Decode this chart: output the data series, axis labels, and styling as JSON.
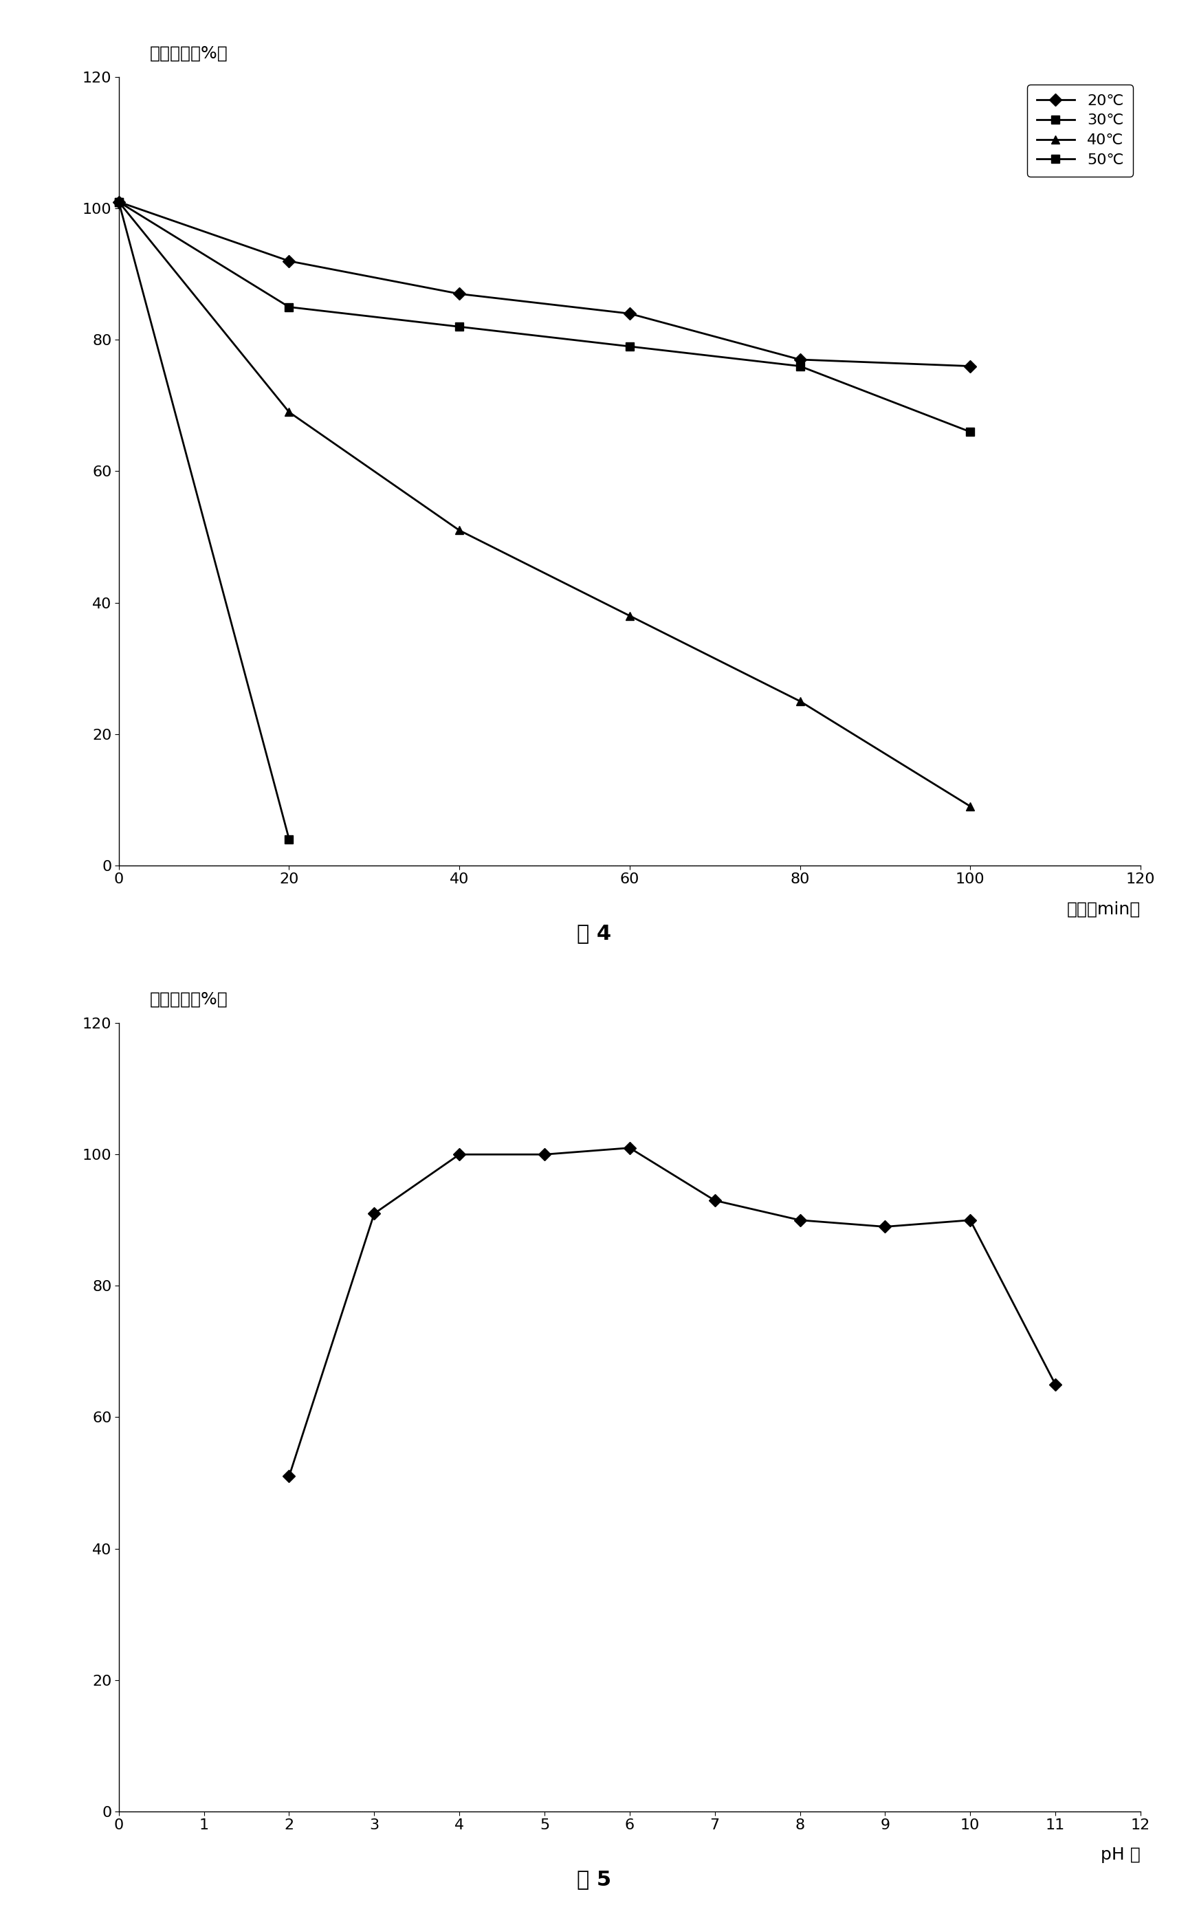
{
  "fig4": {
    "title": "图 4",
    "xlabel": "时间（min）",
    "ylabel": "相对酶活（%）",
    "xlim": [
      0,
      120
    ],
    "ylim": [
      0,
      120
    ],
    "xticks": [
      0,
      20,
      40,
      60,
      80,
      100,
      120
    ],
    "yticks": [
      0,
      20,
      40,
      60,
      80,
      100,
      120
    ],
    "series": [
      {
        "label": "20℃",
        "x": [
          0,
          20,
          40,
          60,
          80,
          100
        ],
        "y": [
          101,
          92,
          87,
          84,
          77,
          76
        ],
        "color": "#000000",
        "marker": "D",
        "markersize": 9,
        "linewidth": 2.0,
        "linestyle": "-"
      },
      {
        "label": "30℃",
        "x": [
          0,
          20,
          40,
          60,
          80,
          100
        ],
        "y": [
          101,
          85,
          82,
          79,
          76,
          66
        ],
        "color": "#000000",
        "marker": "s",
        "markersize": 9,
        "linewidth": 2.0,
        "linestyle": "-"
      },
      {
        "label": "40℃",
        "x": [
          0,
          20,
          40,
          60,
          80,
          100
        ],
        "y": [
          101,
          69,
          51,
          38,
          25,
          9
        ],
        "color": "#000000",
        "marker": "^",
        "markersize": 9,
        "linewidth": 2.0,
        "linestyle": "-"
      },
      {
        "label": "50℃",
        "x": [
          0,
          20
        ],
        "y": [
          101,
          4
        ],
        "color": "#000000",
        "marker": "s",
        "markersize": 9,
        "linewidth": 2.0,
        "linestyle": "-"
      }
    ]
  },
  "fig5": {
    "title": "图 5",
    "xlabel": "pH 値",
    "ylabel": "相对酶活（%）",
    "xlim": [
      0,
      12
    ],
    "ylim": [
      0,
      120
    ],
    "xticks": [
      0,
      1,
      2,
      3,
      4,
      5,
      6,
      7,
      8,
      9,
      10,
      11,
      12
    ],
    "yticks": [
      0,
      20,
      40,
      60,
      80,
      100,
      120
    ],
    "series": [
      {
        "label": "",
        "x": [
          2,
          3,
          4,
          5,
          6,
          7,
          8,
          9,
          10,
          11
        ],
        "y": [
          51,
          91,
          100,
          100,
          101,
          93,
          90,
          89,
          90,
          65
        ],
        "color": "#000000",
        "marker": "D",
        "markersize": 9,
        "linewidth": 2.0,
        "linestyle": "-"
      }
    ]
  },
  "background_color": "#ffffff",
  "font_size_label": 18,
  "font_size_tick": 16,
  "font_size_title": 22,
  "font_size_legend": 16
}
